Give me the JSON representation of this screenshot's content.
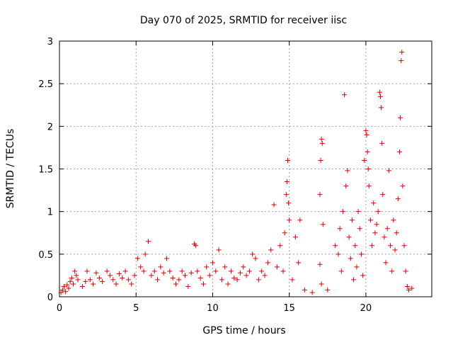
{
  "chart_data": {
    "type": "scatter",
    "title": "Day 070 of 2025, SRMTID for receiver iisc",
    "xlabel": "GPS time / hours",
    "ylabel": "SRMTID / TECUs",
    "xlim": [
      0,
      24.3
    ],
    "ylim": [
      0,
      3
    ],
    "xticks": [
      0,
      5,
      10,
      15,
      20
    ],
    "xtick_labels": [
      "0",
      "5",
      "10",
      "15",
      "20"
    ],
    "yticks": [
      0,
      0.5,
      1,
      1.5,
      2,
      2.5,
      3
    ],
    "ytick_labels": [
      "0",
      "0.5",
      "1",
      "1.5",
      "2",
      "2.5",
      "3"
    ],
    "grid": true,
    "marker": "+",
    "color": "#dd0000",
    "series": [
      {
        "name": "SRMTID",
        "points": [
          [
            0.1,
            0.05
          ],
          [
            0.2,
            0.08
          ],
          [
            0.3,
            0.12
          ],
          [
            0.4,
            0.06
          ],
          [
            0.5,
            0.14
          ],
          [
            0.6,
            0.1
          ],
          [
            0.7,
            0.18
          ],
          [
            0.8,
            0.22
          ],
          [
            0.9,
            0.15
          ],
          [
            1.0,
            0.3
          ],
          [
            1.1,
            0.25
          ],
          [
            1.2,
            0.2
          ],
          [
            1.5,
            0.12
          ],
          [
            1.7,
            0.18
          ],
          [
            1.8,
            0.3
          ],
          [
            2.0,
            0.2
          ],
          [
            2.2,
            0.15
          ],
          [
            2.4,
            0.28
          ],
          [
            2.6,
            0.22
          ],
          [
            2.8,
            0.18
          ],
          [
            3.1,
            0.3
          ],
          [
            3.3,
            0.25
          ],
          [
            3.5,
            0.2
          ],
          [
            3.7,
            0.15
          ],
          [
            3.9,
            0.27
          ],
          [
            4.1,
            0.22
          ],
          [
            4.3,
            0.3
          ],
          [
            4.5,
            0.2
          ],
          [
            4.7,
            0.15
          ],
          [
            4.9,
            0.25
          ],
          [
            5.1,
            0.45
          ],
          [
            5.3,
            0.35
          ],
          [
            5.5,
            0.3
          ],
          [
            5.6,
            0.5
          ],
          [
            5.8,
            0.65
          ],
          [
            6.0,
            0.25
          ],
          [
            6.2,
            0.3
          ],
          [
            6.4,
            0.2
          ],
          [
            6.6,
            0.35
          ],
          [
            6.8,
            0.28
          ],
          [
            7.0,
            0.45
          ],
          [
            7.2,
            0.3
          ],
          [
            7.4,
            0.22
          ],
          [
            7.6,
            0.15
          ],
          [
            7.8,
            0.2
          ],
          [
            8.0,
            0.3
          ],
          [
            8.2,
            0.25
          ],
          [
            8.4,
            0.12
          ],
          [
            8.6,
            0.28
          ],
          [
            8.8,
            0.62
          ],
          [
            8.9,
            0.6
          ],
          [
            9.0,
            0.3
          ],
          [
            9.2,
            0.22
          ],
          [
            9.4,
            0.15
          ],
          [
            9.6,
            0.35
          ],
          [
            9.8,
            0.25
          ],
          [
            10.0,
            0.4
          ],
          [
            10.2,
            0.3
          ],
          [
            10.4,
            0.55
          ],
          [
            10.6,
            0.2
          ],
          [
            10.8,
            0.35
          ],
          [
            11.0,
            0.15
          ],
          [
            11.2,
            0.3
          ],
          [
            11.4,
            0.22
          ],
          [
            11.6,
            0.2
          ],
          [
            11.8,
            0.28
          ],
          [
            12.0,
            0.35
          ],
          [
            12.2,
            0.25
          ],
          [
            12.4,
            0.3
          ],
          [
            12.6,
            0.5
          ],
          [
            12.8,
            0.45
          ],
          [
            13.0,
            0.2
          ],
          [
            13.2,
            0.3
          ],
          [
            13.4,
            0.25
          ],
          [
            13.6,
            0.4
          ],
          [
            13.8,
            0.55
          ],
          [
            14.0,
            1.08
          ],
          [
            14.2,
            0.35
          ],
          [
            14.4,
            0.6
          ],
          [
            14.6,
            0.3
          ],
          [
            14.7,
            0.75
          ],
          [
            14.8,
            1.2
          ],
          [
            14.85,
            1.35
          ],
          [
            14.9,
            1.6
          ],
          [
            14.95,
            1.1
          ],
          [
            15.0,
            0.9
          ],
          [
            15.2,
            0.2
          ],
          [
            15.4,
            0.7
          ],
          [
            15.6,
            0.4
          ],
          [
            15.7,
            0.9
          ],
          [
            16.0,
            0.08
          ],
          [
            16.5,
            0.05
          ],
          [
            17.0,
            1.2
          ],
          [
            17.05,
            1.6
          ],
          [
            17.1,
            1.85
          ],
          [
            17.15,
            1.8
          ],
          [
            17.2,
            0.85
          ],
          [
            17.0,
            0.38
          ],
          [
            17.1,
            0.15
          ],
          [
            17.5,
            0.08
          ],
          [
            18.0,
            0.6
          ],
          [
            18.2,
            0.5
          ],
          [
            18.3,
            0.8
          ],
          [
            18.4,
            0.3
          ],
          [
            18.5,
            1.0
          ],
          [
            18.6,
            2.37
          ],
          [
            18.7,
            1.3
          ],
          [
            18.8,
            1.48
          ],
          [
            18.9,
            0.7
          ],
          [
            19.0,
            0.45
          ],
          [
            19.1,
            0.9
          ],
          [
            19.2,
            0.2
          ],
          [
            19.3,
            0.6
          ],
          [
            19.4,
            0.35
          ],
          [
            19.5,
            1.0
          ],
          [
            19.6,
            0.8
          ],
          [
            19.7,
            0.5
          ],
          [
            19.8,
            0.25
          ],
          [
            19.9,
            1.6
          ],
          [
            20.0,
            1.95
          ],
          [
            20.05,
            1.9
          ],
          [
            20.1,
            1.7
          ],
          [
            20.15,
            1.5
          ],
          [
            20.2,
            1.3
          ],
          [
            20.3,
            0.9
          ],
          [
            20.4,
            0.6
          ],
          [
            20.5,
            1.1
          ],
          [
            20.6,
            0.75
          ],
          [
            20.7,
            0.85
          ],
          [
            20.8,
            1.0
          ],
          [
            20.9,
            2.4
          ],
          [
            20.95,
            2.35
          ],
          [
            21.0,
            2.22
          ],
          [
            21.05,
            1.8
          ],
          [
            21.1,
            1.2
          ],
          [
            21.2,
            0.7
          ],
          [
            21.3,
            0.4
          ],
          [
            21.4,
            0.8
          ],
          [
            21.5,
            1.48
          ],
          [
            21.6,
            0.6
          ],
          [
            21.7,
            0.3
          ],
          [
            21.8,
            0.9
          ],
          [
            21.9,
            0.55
          ],
          [
            22.0,
            0.75
          ],
          [
            22.1,
            1.15
          ],
          [
            22.2,
            1.7
          ],
          [
            22.25,
            2.1
          ],
          [
            22.3,
            2.77
          ],
          [
            22.35,
            2.87
          ],
          [
            22.4,
            1.3
          ],
          [
            22.5,
            0.6
          ],
          [
            22.6,
            0.3
          ],
          [
            22.7,
            0.12
          ],
          [
            22.8,
            0.08
          ],
          [
            23.0,
            0.1
          ]
        ]
      }
    ]
  }
}
